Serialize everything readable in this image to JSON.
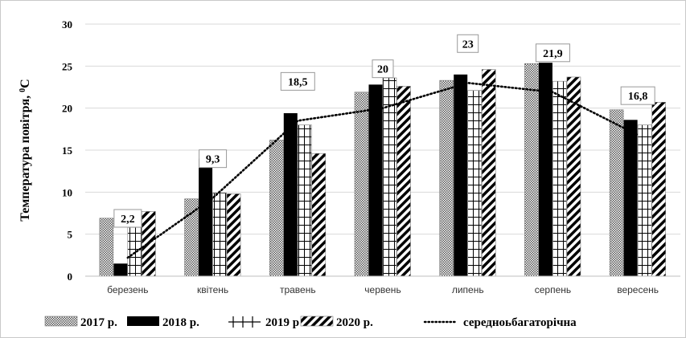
{
  "chart_data": {
    "type": "bar",
    "title": "",
    "xlabel": "",
    "ylabel": "Температура повітря, ⁰С",
    "ylabel_main": "Температура повітря, ",
    "ylabel_sup": "0",
    "ylabel_unit": "С",
    "ylim": [
      0,
      30
    ],
    "yticks": [
      "0",
      "5",
      "10",
      "15",
      "20",
      "25",
      "30"
    ],
    "categories": [
      "березень",
      "квітень",
      "травень",
      "червень",
      "липень",
      "серпень",
      "вересень"
    ],
    "series": [
      {
        "name": "2017 р.",
        "pattern": "dotted-gray",
        "values": [
          6.9,
          9.2,
          16.2,
          21.9,
          23.3,
          25.3,
          19.8
        ]
      },
      {
        "name": "2018 р.",
        "pattern": "solid-black",
        "values": [
          1.5,
          14.0,
          19.4,
          22.8,
          24.0,
          25.4,
          18.6
        ]
      },
      {
        "name": "2019 р",
        "pattern": "grid",
        "values": [
          5.8,
          9.9,
          18.0,
          23.6,
          22.1,
          23.2,
          18.0
        ]
      },
      {
        "name": "2020 р.",
        "pattern": "diagonal",
        "values": [
          7.7,
          9.8,
          14.6,
          22.6,
          24.6,
          23.7,
          20.7
        ]
      }
    ],
    "line_series": {
      "name": "середноьбагаторічна",
      "style": "dotted",
      "values": [
        2.2,
        9.3,
        18.5,
        20,
        23,
        21.9,
        16.8
      ],
      "labels": [
        "2,2",
        "9,3",
        "18,5",
        "20",
        "23",
        "21,9",
        "16,8"
      ]
    },
    "grid": true,
    "legend_position": "bottom",
    "colors": {
      "grid": "#d9d9d9",
      "axis": "#bfbfbf",
      "bar_dark": "#000000",
      "bar_gray": "#7f7f7f"
    }
  }
}
